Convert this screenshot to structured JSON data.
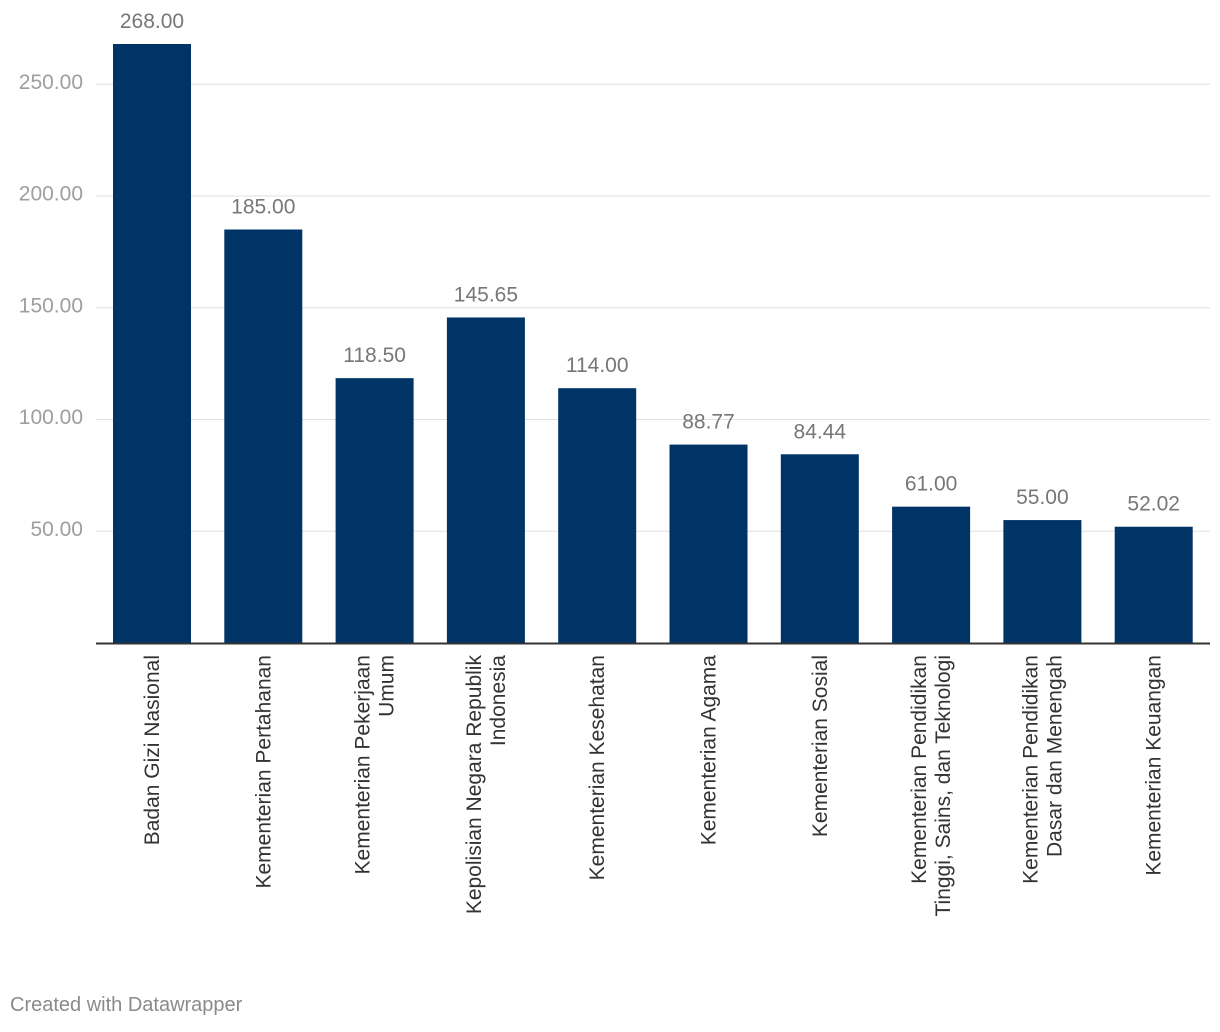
{
  "chart_data": {
    "type": "bar",
    "categories": [
      [
        "Badan Gizi Nasional"
      ],
      [
        "Kementerian Pertahanan"
      ],
      [
        "Kementerian Pekerjaan",
        "Umum"
      ],
      [
        "Kepolisian Negara Republik",
        "Indonesia"
      ],
      [
        "Kementerian Kesehatan"
      ],
      [
        "Kementerian Agama"
      ],
      [
        "Kementerian Sosial"
      ],
      [
        "Kementerian Pendidikan",
        "Tinggi, Sains, dan Teknologi"
      ],
      [
        "Kementerian Pendidikan",
        "Dasar dan Menengah"
      ],
      [
        "Kementerian Keuangan"
      ]
    ],
    "values": [
      268.0,
      185.0,
      118.5,
      145.65,
      114.0,
      88.77,
      84.44,
      61.0,
      55.0,
      52.02
    ],
    "value_labels": [
      "268.00",
      "185.00",
      "118.50",
      "145.65",
      "114.00",
      "88.77",
      "84.44",
      "61.00",
      "55.00",
      "52.02"
    ],
    "y_ticks": [
      50,
      100,
      150,
      200,
      250
    ],
    "y_tick_labels": [
      "50.00",
      "100.00",
      "150.00",
      "200.00",
      "250.00"
    ],
    "ylim": [
      0,
      268
    ],
    "grid": true,
    "bar_color": "#003366",
    "title": "",
    "xlabel": "",
    "ylabel": ""
  },
  "footer": {
    "credit": "Created with Datawrapper"
  }
}
